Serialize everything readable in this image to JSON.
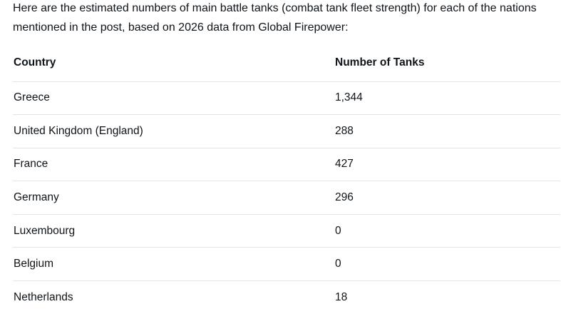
{
  "intro": "Here are the estimated numbers of main battle tanks (combat tank fleet strength) for each of the nations mentioned in the post, based on 2026 data from Global Firepower:",
  "table": {
    "headers": [
      "Country",
      "Number of Tanks"
    ],
    "rows": [
      [
        "Greece",
        "1,344"
      ],
      [
        "United Kingdom (England)",
        "288"
      ],
      [
        "France",
        "427"
      ],
      [
        "Germany",
        "296"
      ],
      [
        "Luxembourg",
        "0"
      ],
      [
        "Belgium",
        "0"
      ],
      [
        "Netherlands",
        "18"
      ]
    ]
  },
  "colors": {
    "text": "#0f1419",
    "divider": "#e1e4e8",
    "background": "#ffffff"
  }
}
